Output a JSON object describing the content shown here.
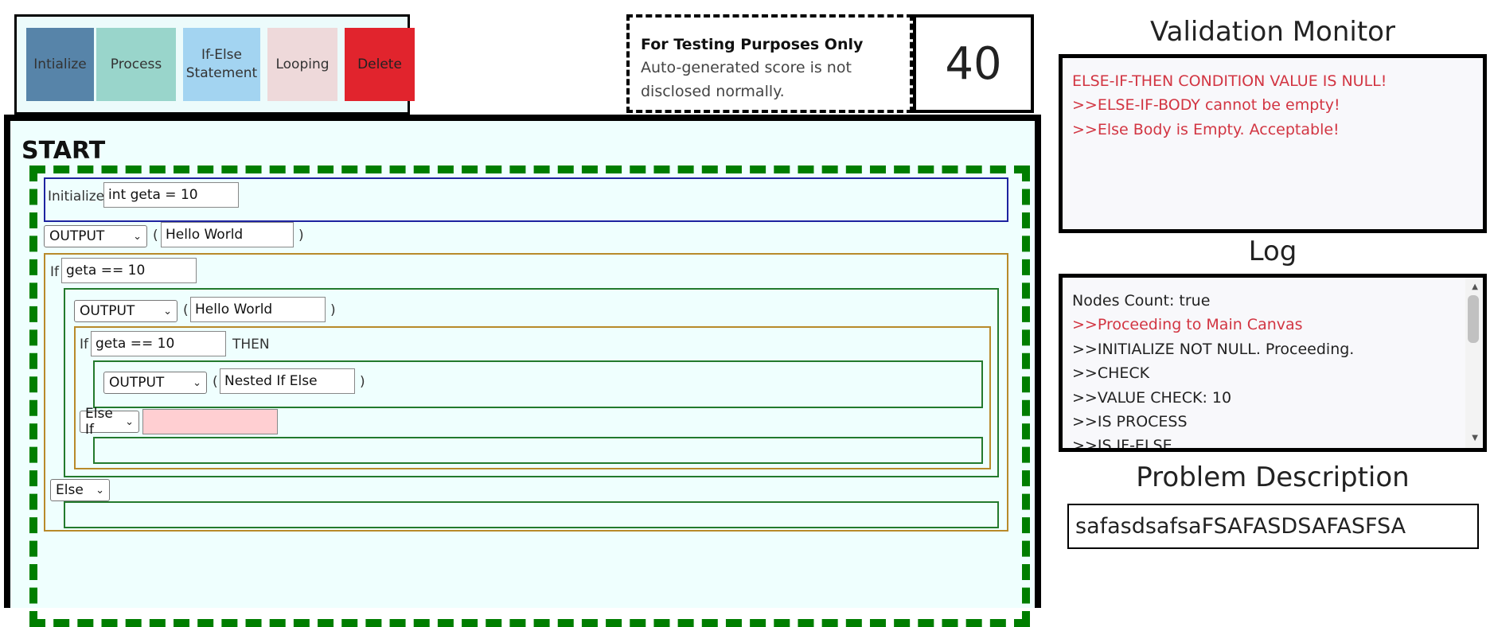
{
  "toolbar": {
    "buttons": [
      {
        "label": "Intialize",
        "color": "#5784a9"
      },
      {
        "label": "Process",
        "color": "#99d5cb"
      },
      {
        "label": "If-Else Statement",
        "color": "#a3d4f1"
      },
      {
        "label": "Looping",
        "color": "#eed9da"
      },
      {
        "label": "Delete",
        "color": "#e1242d"
      }
    ]
  },
  "test_notice": {
    "title": "For Testing Purposes Only",
    "text": "Auto-generated score is not disclosed normally."
  },
  "score": "40",
  "canvas": {
    "title": "START",
    "init_label": "Initialize",
    "init_value": "int geta = 10",
    "output1": {
      "select": "OUTPUT",
      "open": "(",
      "value": "Hello World",
      "close": ")"
    },
    "if1": {
      "label": "If",
      "condition": "geta == 10"
    },
    "output2": {
      "select": "OUTPUT",
      "open": "(",
      "value": "Hello World",
      "close": ")"
    },
    "if2": {
      "label": "If",
      "condition": "geta == 10",
      "then": "THEN"
    },
    "output3": {
      "select": "OUTPUT",
      "open": "(",
      "value": "Nested If Else",
      "close": ")"
    },
    "else_if_select": "Else If",
    "else_if_value": "",
    "else_select": "Else"
  },
  "validation": {
    "title": "Validation Monitor",
    "messages": [
      "ELSE-IF-THEN CONDITION VALUE IS NULL!",
      ">>ELSE-IF-BODY cannot be empty!",
      ">>Else Body is Empty. Acceptable!"
    ]
  },
  "log": {
    "title": "Log",
    "lines": [
      {
        "text": "Nodes Count: true",
        "color": "#222222"
      },
      {
        "text": ">>Proceeding to Main Canvas",
        "color": "#d23542"
      },
      {
        "text": ">>INITIALIZE NOT NULL. Proceeding.",
        "color": "#222222"
      },
      {
        "text": ">>CHECK",
        "color": "#222222"
      },
      {
        "text": ">>VALUE CHECK: 10",
        "color": "#222222"
      },
      {
        "text": ">>IS PROCESS",
        "color": "#222222"
      },
      {
        "text": ">>IS IF-ELSE",
        "color": "#222222"
      }
    ]
  },
  "problem": {
    "title": "Problem Description",
    "text": "safasdsafsaFSAFASDSAFASFSA"
  }
}
